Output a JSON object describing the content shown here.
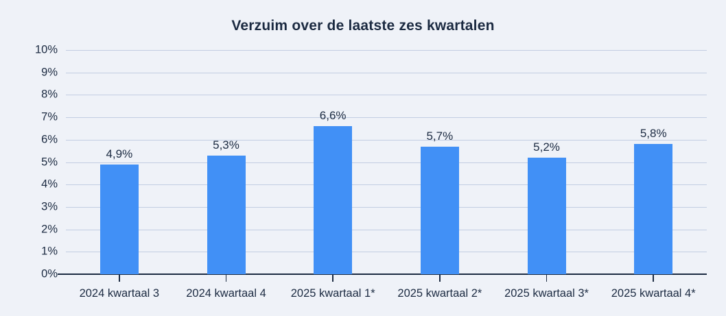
{
  "chart_data": {
    "type": "bar",
    "title": "Verzuim over de laatste zes kwartalen",
    "categories": [
      "2024 kwartaal 3",
      "2024 kwartaal 4",
      "2025 kwartaal 1*",
      "2025 kwartaal 2*",
      "2025 kwartaal 3*",
      "2025 kwartaal 4*"
    ],
    "values": [
      4.9,
      5.3,
      6.6,
      5.7,
      5.2,
      5.8
    ],
    "value_labels": [
      "4,9%",
      "5,3%",
      "6,6%",
      "5,7%",
      "5,2%",
      "5,8%"
    ],
    "xlabel": "",
    "ylabel": "",
    "ylim": [
      0,
      10
    ],
    "ytick_labels": [
      "0%",
      "1%",
      "2%",
      "3%",
      "4%",
      "5%",
      "6%",
      "7%",
      "8%",
      "9%",
      "10%"
    ],
    "grid": true,
    "legend": "none"
  },
  "colors": {
    "background": "#eff2f8",
    "bar": "#4190f6",
    "text": "#1b2a41",
    "gridline": "#c2cde2",
    "axis": "#1b2a41"
  }
}
